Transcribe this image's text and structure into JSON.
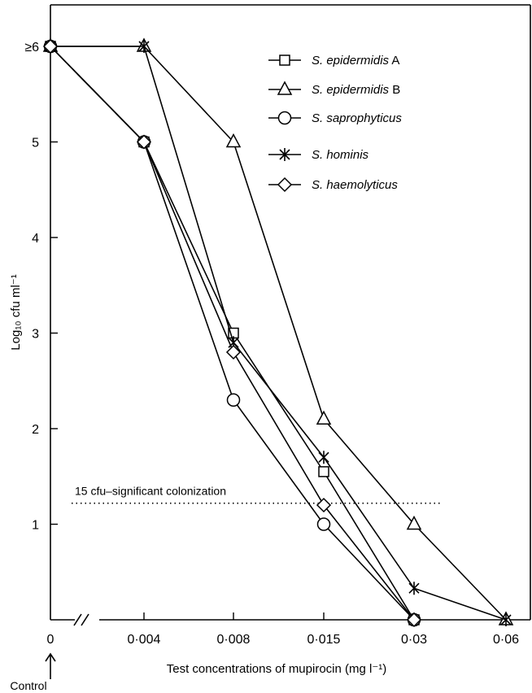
{
  "chart_data": {
    "type": "line",
    "xlabel": "Test concentrations of mupirocin (mg l⁻¹)",
    "ylabel": "Log₁₀ cfu ml⁻¹",
    "categories": [
      "0",
      "0·004",
      "0·008",
      "0·015",
      "0·03",
      "0·06"
    ],
    "x_note": "Control",
    "y_ticks": [
      {
        "value": 1,
        "label": "1"
      },
      {
        "value": 2,
        "label": "2"
      },
      {
        "value": 3,
        "label": "3"
      },
      {
        "value": 4,
        "label": "4"
      },
      {
        "value": 5,
        "label": "5"
      },
      {
        "value": 6,
        "label": "≥6"
      }
    ],
    "ylim": [
      0,
      6.3
    ],
    "x_axis_break": true,
    "legend_position": "top-right",
    "series": [
      {
        "name": "S. epidermidis",
        "suffix": "A",
        "marker": "square",
        "values": [
          6,
          5,
          3.0,
          1.55,
          0.0,
          null
        ]
      },
      {
        "name": "S. epidermidis",
        "suffix": "B",
        "marker": "triangle",
        "values": [
          6,
          6,
          5.0,
          2.1,
          1.0,
          0.0
        ]
      },
      {
        "name": "S. saprophyticus",
        "suffix": "",
        "marker": "circle",
        "values": [
          6,
          5,
          2.3,
          1.0,
          0.0,
          null
        ]
      },
      {
        "name": "S. hominis",
        "suffix": "",
        "marker": "star",
        "values": [
          6,
          6,
          2.9,
          1.7,
          0.33,
          0.0
        ]
      },
      {
        "name": "S. haemolyticus",
        "suffix": "",
        "marker": "diamond",
        "values": [
          6,
          5,
          2.8,
          1.2,
          0.0,
          null
        ]
      }
    ],
    "reference_line": {
      "y": 1.22,
      "label": "15 cfu–significant colonization"
    }
  }
}
